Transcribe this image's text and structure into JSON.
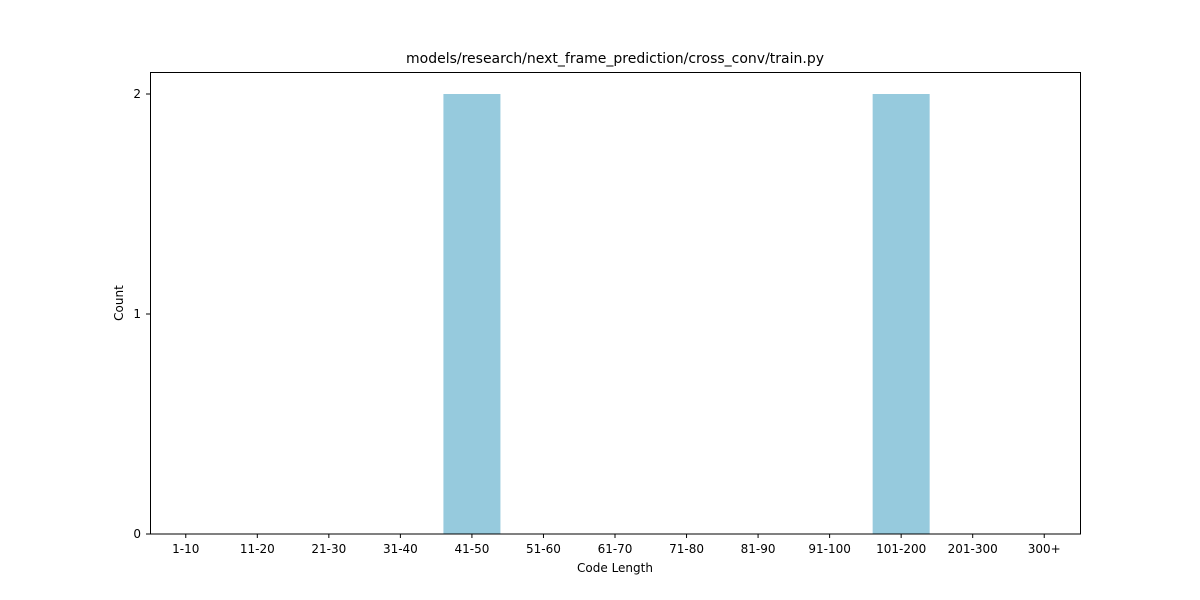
{
  "chart_data": {
    "type": "bar",
    "title": "models/research/next_frame_prediction/cross_conv/train.py",
    "xlabel": "Code Length",
    "ylabel": "Count",
    "categories": [
      "1-10",
      "11-20",
      "21-30",
      "31-40",
      "41-50",
      "51-60",
      "61-70",
      "71-80",
      "81-90",
      "91-100",
      "101-200",
      "201-300",
      "300+"
    ],
    "values": [
      0,
      0,
      0,
      0,
      2,
      0,
      0,
      0,
      0,
      0,
      2,
      0,
      0
    ],
    "ylim": [
      0,
      2.1
    ],
    "yticks": [
      0,
      1,
      2
    ],
    "bar_color": "#96cadd",
    "grid": false,
    "legend": "none"
  }
}
